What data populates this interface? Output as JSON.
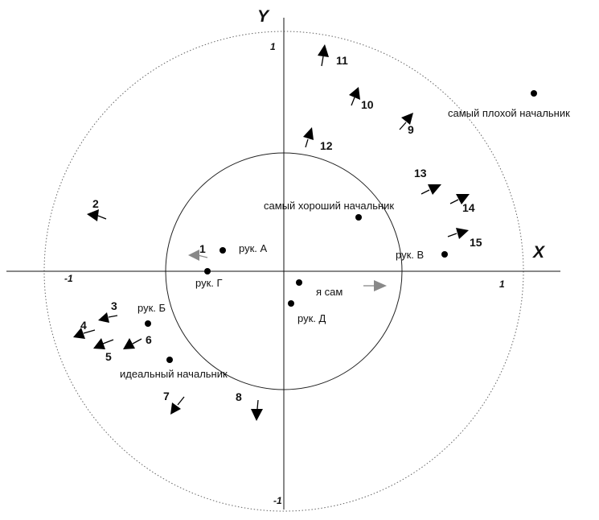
{
  "axes": {
    "x_name": "X",
    "y_name": "Y",
    "tick_pos": "1",
    "tick_neg": "-1"
  },
  "points": [
    {
      "key": "worst",
      "label": "самый плохой начальник"
    },
    {
      "key": "best",
      "label": "самый хороший начальник"
    },
    {
      "key": "ruk_a",
      "label": "рук.  А"
    },
    {
      "key": "ruk_g",
      "label": "рук. Г"
    },
    {
      "key": "ruk_v",
      "label": "рук. В"
    },
    {
      "key": "self",
      "label": "я сам"
    },
    {
      "key": "ruk_d",
      "label": "рук. Д"
    },
    {
      "key": "ruk_b",
      "label": "рук. Б"
    },
    {
      "key": "ideal",
      "label": "идеальный начальник"
    }
  ],
  "arrows": [
    {
      "id": "1",
      "color": "#888888"
    },
    {
      "id": "2",
      "color": "#000000"
    },
    {
      "id": "3",
      "color": "#000000"
    },
    {
      "id": "4",
      "color": "#000000"
    },
    {
      "id": "5",
      "color": "#000000"
    },
    {
      "id": "6",
      "color": "#000000"
    },
    {
      "id": "7",
      "color": "#000000"
    },
    {
      "id": "8",
      "color": "#000000"
    },
    {
      "id": "9",
      "color": "#000000"
    },
    {
      "id": "10",
      "color": "#000000"
    },
    {
      "id": "11",
      "color": "#000000"
    },
    {
      "id": "12",
      "color": "#000000"
    },
    {
      "id": "13",
      "color": "#000000"
    },
    {
      "id": "14",
      "color": "#000000"
    },
    {
      "id": "15",
      "color": "#000000"
    },
    {
      "id": "",
      "color": "#888888"
    }
  ]
}
